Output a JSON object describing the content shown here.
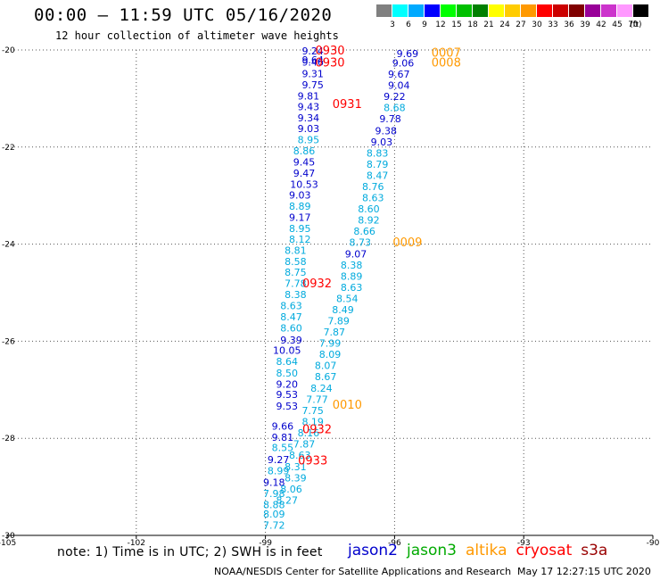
{
  "header": {
    "title": "00:00 – 11:59 UTC 05/16/2020",
    "subtitle": "12 hour collection of altimeter wave heights"
  },
  "colorbar": {
    "unit": "(ft)",
    "items": [
      {
        "label": "3",
        "color": "#808080"
      },
      {
        "label": "6",
        "color": "#00ffff"
      },
      {
        "label": "9",
        "color": "#00aaff"
      },
      {
        "label": "12",
        "color": "#0000ff"
      },
      {
        "label": "15",
        "color": "#00ff00"
      },
      {
        "label": "18",
        "color": "#00c000"
      },
      {
        "label": "21",
        "color": "#008000"
      },
      {
        "label": "24",
        "color": "#ffff00"
      },
      {
        "label": "27",
        "color": "#ffcc00"
      },
      {
        "label": "30",
        "color": "#ff9900"
      },
      {
        "label": "33",
        "color": "#ff0000"
      },
      {
        "label": "36",
        "color": "#cc0000"
      },
      {
        "label": "39",
        "color": "#800000"
      },
      {
        "label": "42",
        "color": "#990099"
      },
      {
        "label": "45",
        "color": "#cc33cc"
      },
      {
        "label": "70",
        "color": "#ff99ff"
      },
      {
        "label": "",
        "color": "#000000"
      }
    ]
  },
  "chart_data": {
    "type": "scatter",
    "title": "00:00 – 11:59 UTC 05/16/2020",
    "xlim": [
      -105,
      -90
    ],
    "ylim": [
      -30,
      -20
    ],
    "x_ticks": [
      "-105",
      "-102",
      "-99",
      "-96",
      "-93",
      "-90"
    ],
    "y_ticks": [
      "-20",
      "-22",
      "-24",
      "-26",
      "-28",
      "-30"
    ],
    "y_tick_values": [
      -20,
      -22,
      -24,
      -26,
      -28,
      -30
    ],
    "grid": true,
    "colors": {
      "dark": "#0000cc",
      "light": "#00aadd",
      "jason2": "#0000cc",
      "altika": "#ff9900",
      "cryosat": "#ff0000"
    },
    "tracks": [
      {
        "points": [
          {
            "x": -97.9,
            "y": -20.02,
            "v": "9.24",
            "c": "dark"
          },
          {
            "x": -97.9,
            "y": -20.2,
            "v": "9.64",
            "c": "dark"
          },
          {
            "x": -97.9,
            "y": -20.25,
            "v": "9.46",
            "c": "dark"
          },
          {
            "x": -97.9,
            "y": -20.49,
            "v": "9.31",
            "c": "dark"
          },
          {
            "x": -97.9,
            "y": -20.72,
            "v": "9.75",
            "c": "dark"
          },
          {
            "x": -98.0,
            "y": -20.95,
            "v": "9.81",
            "c": "dark"
          },
          {
            "x": -98.0,
            "y": -21.17,
            "v": "9.43",
            "c": "dark"
          },
          {
            "x": -98.0,
            "y": -21.4,
            "v": "9.34",
            "c": "dark"
          },
          {
            "x": -98.0,
            "y": -21.62,
            "v": "9.03",
            "c": "dark"
          },
          {
            "x": -98.0,
            "y": -21.85,
            "v": "8.95",
            "c": "light"
          },
          {
            "x": -98.1,
            "y": -22.08,
            "v": "8.86",
            "c": "light"
          },
          {
            "x": -98.1,
            "y": -22.31,
            "v": "9.45",
            "c": "dark"
          },
          {
            "x": -98.1,
            "y": -22.54,
            "v": "9.47",
            "c": "dark"
          },
          {
            "x": -98.1,
            "y": -22.77,
            "v": "10.53",
            "c": "dark"
          },
          {
            "x": -98.2,
            "y": -22.99,
            "v": "9.03",
            "c": "dark"
          },
          {
            "x": -98.2,
            "y": -23.22,
            "v": "8.89",
            "c": "light"
          },
          {
            "x": -98.2,
            "y": -23.45,
            "v": "9.17",
            "c": "dark"
          },
          {
            "x": -98.2,
            "y": -23.68,
            "v": "8.95",
            "c": "light"
          },
          {
            "x": -98.2,
            "y": -23.9,
            "v": "8.12",
            "c": "light"
          },
          {
            "x": -98.3,
            "y": -24.13,
            "v": "8.81",
            "c": "light"
          },
          {
            "x": -98.3,
            "y": -24.36,
            "v": "8.58",
            "c": "light"
          },
          {
            "x": -98.3,
            "y": -24.58,
            "v": "8.75",
            "c": "light"
          },
          {
            "x": -98.3,
            "y": -24.81,
            "v": "7.78",
            "c": "light"
          },
          {
            "x": -98.3,
            "y": -25.04,
            "v": "8.38",
            "c": "light"
          },
          {
            "x": -98.4,
            "y": -25.27,
            "v": "8.63",
            "c": "light"
          },
          {
            "x": -98.4,
            "y": -25.5,
            "v": "8.47",
            "c": "light"
          },
          {
            "x": -98.4,
            "y": -25.73,
            "v": "8.60",
            "c": "light"
          },
          {
            "x": -98.4,
            "y": -25.97,
            "v": "9.39",
            "c": "dark"
          },
          {
            "x": -98.5,
            "y": -26.19,
            "v": "10.05",
            "c": "dark"
          },
          {
            "x": -98.5,
            "y": -26.42,
            "v": "8.64",
            "c": "light"
          },
          {
            "x": -98.5,
            "y": -26.65,
            "v": "8.50",
            "c": "light"
          },
          {
            "x": -98.5,
            "y": -26.88,
            "v": "9.20",
            "c": "dark"
          },
          {
            "x": -98.5,
            "y": -27.1,
            "v": "9.53",
            "c": "dark"
          },
          {
            "x": -98.5,
            "y": -27.33,
            "v": "9.53",
            "c": "dark"
          },
          {
            "x": -98.6,
            "y": -27.75,
            "v": "9.66",
            "c": "dark"
          },
          {
            "x": -98.6,
            "y": -27.98,
            "v": "9.81",
            "c": "dark"
          },
          {
            "x": -98.6,
            "y": -28.19,
            "v": "8.55",
            "c": "light"
          },
          {
            "x": -98.7,
            "y": -28.44,
            "v": "9.27",
            "c": "dark"
          },
          {
            "x": -98.7,
            "y": -28.67,
            "v": "8.99",
            "c": "light"
          },
          {
            "x": -98.8,
            "y": -28.91,
            "v": "9.18",
            "c": "dark"
          },
          {
            "x": -98.8,
            "y": -29.14,
            "v": "7.98",
            "c": "light"
          },
          {
            "x": -98.8,
            "y": -29.37,
            "v": "8.88",
            "c": "light"
          },
          {
            "x": -98.8,
            "y": -29.56,
            "v": "8.09",
            "c": "light"
          },
          {
            "x": -98.8,
            "y": -29.79,
            "v": "7.72",
            "c": "light"
          }
        ]
      },
      {
        "points": [
          {
            "x": -95.7,
            "y": -20.07,
            "v": "9.69",
            "c": "dark"
          },
          {
            "x": -95.8,
            "y": -20.27,
            "v": "9.06",
            "c": "dark"
          },
          {
            "x": -95.9,
            "y": -20.5,
            "v": "9.67",
            "c": "dark"
          },
          {
            "x": -95.9,
            "y": -20.73,
            "v": "9.04",
            "c": "dark"
          },
          {
            "x": -96.0,
            "y": -20.96,
            "v": "9.22",
            "c": "dark"
          },
          {
            "x": -96.0,
            "y": -21.19,
            "v": "8.68",
            "c": "light"
          },
          {
            "x": -96.1,
            "y": -21.42,
            "v": "9.78",
            "c": "dark"
          },
          {
            "x": -96.2,
            "y": -21.66,
            "v": "9.38",
            "c": "dark"
          },
          {
            "x": -96.3,
            "y": -21.89,
            "v": "9.03",
            "c": "dark"
          },
          {
            "x": -96.4,
            "y": -22.12,
            "v": "8.83",
            "c": "light"
          },
          {
            "x": -96.4,
            "y": -22.35,
            "v": "8.79",
            "c": "light"
          },
          {
            "x": -96.4,
            "y": -22.58,
            "v": "8.47",
            "c": "light"
          },
          {
            "x": -96.5,
            "y": -22.81,
            "v": "8.76",
            "c": "light"
          },
          {
            "x": -96.5,
            "y": -23.04,
            "v": "8.63",
            "c": "light"
          },
          {
            "x": -96.6,
            "y": -23.27,
            "v": "8.60",
            "c": "light"
          },
          {
            "x": -96.6,
            "y": -23.5,
            "v": "8.92",
            "c": "light"
          },
          {
            "x": -96.7,
            "y": -23.73,
            "v": "8.66",
            "c": "light"
          },
          {
            "x": -96.8,
            "y": -23.96,
            "v": "8.73",
            "c": "light"
          },
          {
            "x": -96.9,
            "y": -24.2,
            "v": "9.07",
            "c": "dark"
          },
          {
            "x": -97.0,
            "y": -24.43,
            "v": "8.38",
            "c": "light"
          },
          {
            "x": -97.0,
            "y": -24.66,
            "v": "8.89",
            "c": "light"
          },
          {
            "x": -97.0,
            "y": -24.89,
            "v": "8.63",
            "c": "light"
          },
          {
            "x": -97.1,
            "y": -25.12,
            "v": "8.54",
            "c": "light"
          },
          {
            "x": -97.2,
            "y": -25.35,
            "v": "8.49",
            "c": "light"
          },
          {
            "x": -97.3,
            "y": -25.58,
            "v": "7.89",
            "c": "light"
          },
          {
            "x": -97.4,
            "y": -25.81,
            "v": "7.87",
            "c": "light"
          },
          {
            "x": -97.5,
            "y": -26.04,
            "v": "7.99",
            "c": "light"
          },
          {
            "x": -97.5,
            "y": -26.27,
            "v": "8.09",
            "c": "light"
          },
          {
            "x": -97.6,
            "y": -26.5,
            "v": "8.07",
            "c": "light"
          },
          {
            "x": -97.6,
            "y": -26.73,
            "v": "8.67",
            "c": "light"
          },
          {
            "x": -97.7,
            "y": -26.97,
            "v": "8.24",
            "c": "light"
          },
          {
            "x": -97.8,
            "y": -27.2,
            "v": "7.77",
            "c": "light"
          },
          {
            "x": -97.9,
            "y": -27.43,
            "v": "7.75",
            "c": "light"
          },
          {
            "x": -97.9,
            "y": -27.66,
            "v": "8.19",
            "c": "light"
          },
          {
            "x": -98.0,
            "y": -27.89,
            "v": "8.16",
            "c": "light"
          },
          {
            "x": -98.1,
            "y": -28.12,
            "v": "7.87",
            "c": "light"
          },
          {
            "x": -98.2,
            "y": -28.35,
            "v": "8.63",
            "c": "light"
          },
          {
            "x": -98.3,
            "y": -28.58,
            "v": "8.31",
            "c": "light"
          },
          {
            "x": -98.3,
            "y": -28.81,
            "v": "8.39",
            "c": "light"
          },
          {
            "x": -98.4,
            "y": -29.04,
            "v": "8.06",
            "c": "light"
          },
          {
            "x": -98.5,
            "y": -29.27,
            "v": "8.27",
            "c": "light"
          }
        ]
      }
    ],
    "time_labels": [
      {
        "x": -97.5,
        "y": -20.0,
        "t": "0930",
        "c": "cryosat"
      },
      {
        "x": -97.5,
        "y": -20.25,
        "t": "0930",
        "c": "cryosat"
      },
      {
        "x": -97.1,
        "y": -21.1,
        "t": "0931",
        "c": "cryosat"
      },
      {
        "x": -97.8,
        "y": -24.8,
        "t": "0932",
        "c": "cryosat"
      },
      {
        "x": -97.8,
        "y": -27.8,
        "t": "0932",
        "c": "cryosat"
      },
      {
        "x": -97.9,
        "y": -28.45,
        "t": "0933",
        "c": "cryosat"
      },
      {
        "x": -94.8,
        "y": -20.05,
        "t": "0007",
        "c": "altika"
      },
      {
        "x": -94.8,
        "y": -20.25,
        "t": "0008",
        "c": "altika"
      },
      {
        "x": -95.7,
        "y": -23.95,
        "t": "0009",
        "c": "altika"
      },
      {
        "x": -97.1,
        "y": -27.3,
        "t": "0010",
        "c": "altika"
      }
    ]
  },
  "footer": {
    "note": "note: 1) Time is in UTC; 2) SWH is in feet",
    "legend": [
      {
        "label": "jason2",
        "color": "#0000cc"
      },
      {
        "label": "jason3",
        "color": "#00aa00"
      },
      {
        "label": "altika",
        "color": "#ff9900"
      },
      {
        "label": "cryosat",
        "color": "#ff0000"
      },
      {
        "label": "s3a",
        "color": "#990000"
      }
    ],
    "credit": "NOAA/NESDIS Center for Satellite Applications and Research",
    "timestamp": "May 17 12:27:15 UTC 2020"
  }
}
